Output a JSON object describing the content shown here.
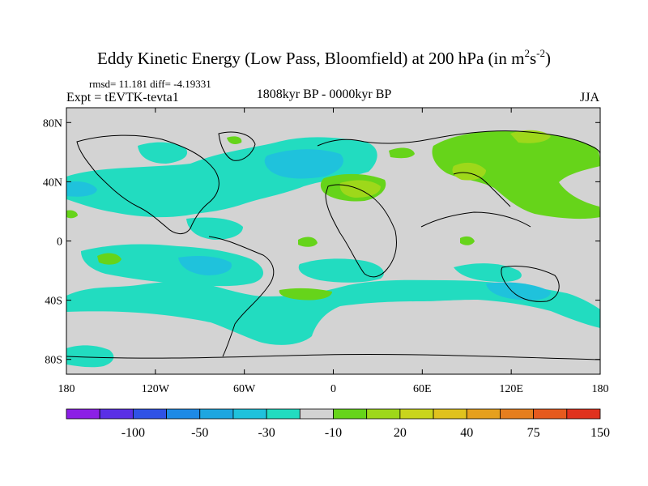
{
  "title": {
    "main": "Eddy Kinetic Energy (Low Pass, Bloomfield) at 200 hPa (in m",
    "sup1": "2",
    "mid": "s",
    "sup2": "-2",
    "close": ")"
  },
  "stats": "rmsd= 11.181 diff= -4.19331",
  "left_label": "Expt = tEVTK-tevta1",
  "center_label": "1808kyr BP - 0000kyr BP",
  "right_label": "JJA",
  "lat_ticks": [
    "80N",
    "40N",
    "0",
    "40S",
    "80S"
  ],
  "lon_ticks": [
    "180",
    "120W",
    "60W",
    "0",
    "60E",
    "120E",
    "180"
  ],
  "colors": {
    "background": "#d3d3d3",
    "coast": "#000000",
    "levels": [
      "#8c1fe6",
      "#5a2fe6",
      "#2f52e6",
      "#1e8ae6",
      "#1ea6e0",
      "#1fc2dc",
      "#22dcc0",
      "#d3d3d3",
      "#66d41a",
      "#9ed81a",
      "#c9d51c",
      "#e0c21e",
      "#e6a01e",
      "#e67e1e",
      "#e65a1e",
      "#e0321e"
    ]
  },
  "colorbar_labels": [
    "-100",
    "-50",
    "-30",
    "-10",
    "20",
    "40",
    "75",
    "150"
  ]
}
